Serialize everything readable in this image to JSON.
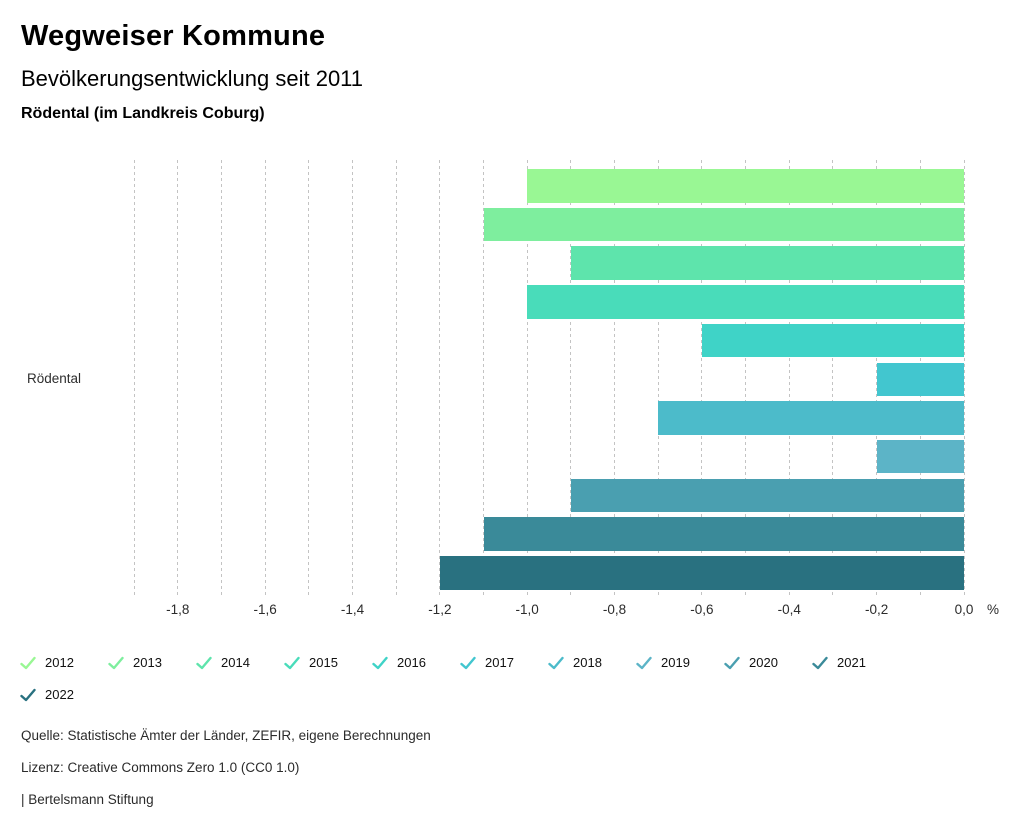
{
  "header": {
    "title": "Wegweiser Kommune",
    "subtitle": "Bevölkerungsentwicklung seit 2011",
    "region": "Rödental (im Landkreis Coburg)"
  },
  "chart_data": {
    "type": "bar",
    "orientation": "horizontal",
    "title": "Bevölkerungsentwicklung seit 2011",
    "category_label": "Rödental",
    "unit": "%",
    "xlim": [
      -1.9,
      0
    ],
    "gridline_step": 0.1,
    "grid": true,
    "legend_position": "bottom",
    "x_tick_labels": [
      "-1,8",
      "-1,6",
      "-1,4",
      "-1,2",
      "-1,0",
      "-0,8",
      "-0,6",
      "-0,4",
      "-0,2",
      "0,0"
    ],
    "x_tick_values": [
      -1.8,
      -1.6,
      -1.4,
      -1.2,
      -1.0,
      -0.8,
      -0.6,
      -0.4,
      -0.2,
      0.0
    ],
    "series": [
      {
        "name": "2012",
        "value": -1.0,
        "color": "#99f794"
      },
      {
        "name": "2013",
        "value": -1.1,
        "color": "#7eee9e"
      },
      {
        "name": "2014",
        "value": -0.9,
        "color": "#5ee4ac"
      },
      {
        "name": "2015",
        "value": -1.0,
        "color": "#49dcba"
      },
      {
        "name": "2016",
        "value": -0.6,
        "color": "#3fd3c7"
      },
      {
        "name": "2017",
        "value": -0.2,
        "color": "#42c6cf"
      },
      {
        "name": "2018",
        "value": -0.7,
        "color": "#4cbbca"
      },
      {
        "name": "2019",
        "value": -0.2,
        "color": "#5cb4c7"
      },
      {
        "name": "2020",
        "value": -0.9,
        "color": "#4a9fb0"
      },
      {
        "name": "2021",
        "value": -1.1,
        "color": "#3a8a99"
      },
      {
        "name": "2022",
        "value": -1.2,
        "color": "#297180"
      }
    ]
  },
  "footer": {
    "source": "Quelle: Statistische Ämter der Länder, ZEFIR, eigene Berechnungen",
    "license": "Lizenz: Creative Commons Zero 1.0 (CC0 1.0)",
    "attribution": "| Bertelsmann Stiftung"
  }
}
